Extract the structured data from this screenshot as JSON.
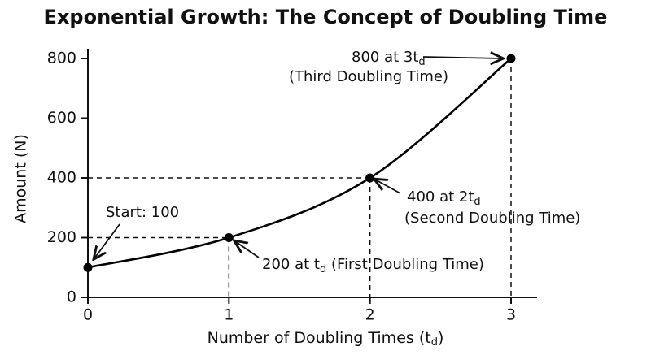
{
  "chart_data": {
    "type": "line",
    "title": "Exponential Growth: The Concept of Doubling Time",
    "xlabel": [
      {
        "text": "Number of Doubling Times (t"
      },
      {
        "text": "d",
        "sub": true
      },
      {
        "text": ")"
      }
    ],
    "ylabel": "Amount (N)",
    "x": [
      0,
      1,
      2,
      3
    ],
    "series": [
      {
        "color": "#000000",
        "values": [
          100,
          200,
          400,
          800
        ]
      }
    ],
    "xlim": [
      0,
      3
    ],
    "ylim": [
      0,
      800
    ],
    "xticks": [
      0,
      1,
      2,
      3
    ],
    "yticks": [
      0,
      200,
      400,
      600,
      800
    ],
    "annotations": [
      {
        "lines": [
          [
            {
              "text": "Start: 100"
            }
          ]
        ]
      },
      {
        "lines": [
          [
            {
              "text": "200 at t"
            },
            {
              "text": "d",
              "sub": true
            },
            {
              "text": " (First Doubling Time)"
            }
          ]
        ]
      },
      {
        "lines": [
          [
            {
              "text": "400 at 2t"
            },
            {
              "text": "d",
              "sub": true
            }
          ],
          [
            {
              "text": "(Second Doubling Time)"
            }
          ]
        ]
      },
      {
        "lines": [
          [
            {
              "text": "800 at 3t"
            },
            {
              "text": "d",
              "sub": true
            }
          ],
          [
            {
              "text": "(Third Doubling Time)"
            }
          ]
        ]
      }
    ]
  }
}
